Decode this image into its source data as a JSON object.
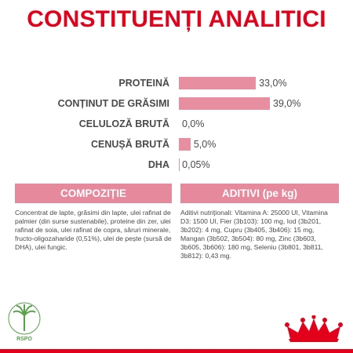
{
  "page": {
    "title": "CONSTITUENȚI ANALITICI",
    "accent_color": "#e2001a",
    "bar_color": "#e78ea0",
    "header_bg": "#e6899c"
  },
  "analysis": {
    "rows": [
      {
        "label": "PROTEINĂ",
        "value_text": "33,0%",
        "value": 33.0
      },
      {
        "label": "CONȚINUT DE GRĂSIMI",
        "value_text": "39,0%",
        "value": 39.0
      },
      {
        "label": "CELULOZĂ BRUTĂ",
        "value_text": "0,0%",
        "value": 0.0
      },
      {
        "label": "CENUȘĂ BRUTĂ",
        "value_text": "5,0%",
        "value": 5.0
      },
      {
        "label": "DHA",
        "value_text": "0,05%",
        "value": 0.05
      }
    ],
    "max_value": 39.0
  },
  "composition": {
    "header": "COMPOZIȚIE",
    "text": "Concentrat de lapte, grăsimi din lapte, ulei rafinat de palmier (din surse sustenabile), proteine din zer, ulei rafinat de soia, ulei rafinat de copra, săruri minerale, fructo-oligozaharide (0,51%), ulei de pește (sursă de DHA), ulei fungic."
  },
  "additives": {
    "header": "ADITIVI (pe kg)",
    "text": "Aditivi nutriționali: Vitamina A: 25000 UI, Vitamina D3: 1500 UI, Fier (3b103): 100 mg, Iod (3b201, 3b202): 4 mg, Cupru (3b405, 3b406): 15 mg, Mangan (3b502, 3b504): 80 mg, Zinc (3b603, 3b605, 3b606): 180 mg, Seleniu (3b801, 3b811, 3b812): 0,43 mg."
  },
  "logos": {
    "left": {
      "icon": "rspo-palm-icon",
      "text": "RSPO"
    },
    "right": {
      "icon": "royal-canin-crown-icon"
    }
  }
}
